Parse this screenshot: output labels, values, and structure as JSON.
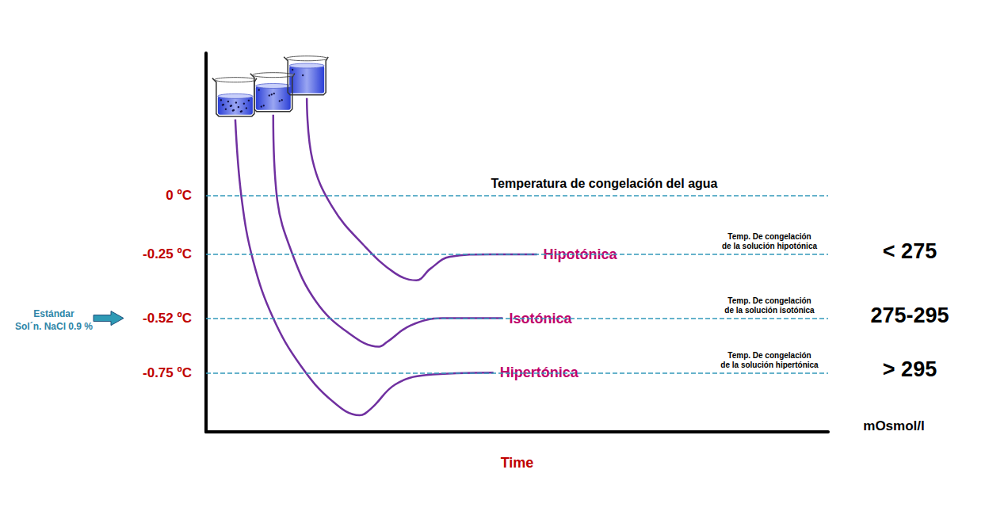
{
  "chart_data": {
    "type": "line",
    "x_label": "Time",
    "xlim": [
      0,
      100
    ],
    "ylim": [
      -1.0,
      0.6
    ],
    "yticks": [
      {
        "value": 0,
        "label": "0 ºC"
      },
      {
        "value": -0.25,
        "label": "-0.25 ºC"
      },
      {
        "value": -0.52,
        "label": "-0.52 ºC"
      },
      {
        "value": -0.75,
        "label": "-0.75 ºC"
      }
    ],
    "tick_labels": "y",
    "grid": false,
    "series": [
      {
        "name": "Hipertónica",
        "color": "#7030a0",
        "x": [
          4.7,
          5.7,
          7.6,
          10.8,
          15.2,
          20.3,
          24.7,
          26.6,
          30.4,
          35.4,
          46.2
        ],
        "values": [
          0.32,
          -0.01,
          -0.28,
          -0.52,
          -0.72,
          -0.87,
          -0.93,
          -0.9,
          -0.8,
          -0.76,
          -0.75
        ]
      },
      {
        "name": "Isotónica",
        "color": "#7030a0",
        "x": [
          10.8,
          11.4,
          13.9,
          17.7,
          22.8,
          27.8,
          29.1,
          32.9,
          38.0,
          47.7
        ],
        "values": [
          0.34,
          -0.01,
          -0.25,
          -0.45,
          -0.58,
          -0.64,
          -0.62,
          -0.55,
          -0.52,
          -0.52
        ]
      },
      {
        "name": "Hipotónica",
        "color": "#7030a0",
        "x": [
          16.2,
          17.1,
          20.3,
          25.3,
          30.4,
          33.8,
          36.1,
          39.2,
          45.6,
          53.2
        ],
        "values": [
          0.41,
          0.15,
          -0.05,
          -0.21,
          -0.33,
          -0.36,
          -0.31,
          -0.26,
          -0.25,
          -0.25
        ]
      }
    ],
    "reference_lines": [
      {
        "value": 0,
        "label": "Temperatura de congelación del agua"
      },
      {
        "value": -0.25,
        "label": "Temp. De congelación\nde la solución hipotónica",
        "osmolarity": "< 275"
      },
      {
        "value": -0.52,
        "label": "Temp. De congelación\nde la solución isotónica",
        "osmolarity": "275-295"
      },
      {
        "value": -0.75,
        "label": "Temp. De congelación\nde la solución hipertónica",
        "osmolarity": "> 295"
      }
    ],
    "osmolarity_unit": "mOsmol/l",
    "standard": {
      "value": -0.52,
      "text": "Estándar\nSol´n. NaCl 0.9 %"
    }
  }
}
